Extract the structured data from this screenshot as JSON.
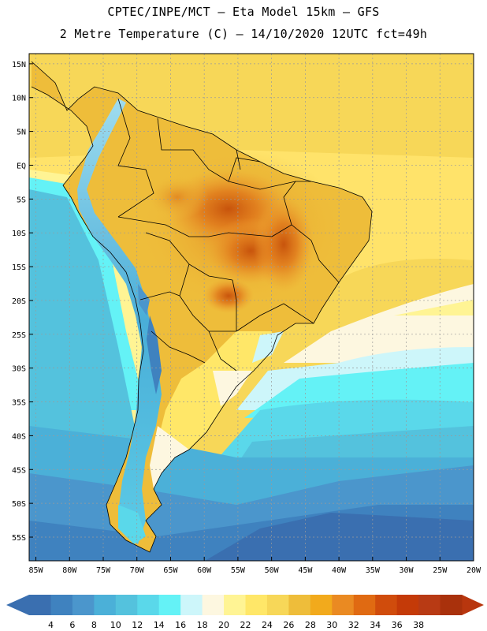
{
  "header": {
    "line1": "CPTEC/INPE/MCT –  Eta Model 15km – GFS",
    "line2": "2 Metre Temperature (C) – 14/10/2020 12UTC fct=49h"
  },
  "map": {
    "lat_labels": [
      "15N",
      "10N",
      "5N",
      "EQ",
      "5S",
      "10S",
      "15S",
      "20S",
      "25S",
      "30S",
      "35S",
      "40S",
      "45S",
      "50S",
      "55S"
    ],
    "lon_labels": [
      "85W",
      "80W",
      "75W",
      "70W",
      "65W",
      "60W",
      "55W",
      "50W",
      "45W",
      "40W",
      "35W",
      "30W",
      "25W",
      "20W"
    ],
    "extent": {
      "lon": [
        -86,
        -20
      ],
      "lat": [
        -58.5,
        16.5
      ]
    }
  },
  "colorbar": {
    "labels": [
      "4",
      "6",
      "8",
      "10",
      "12",
      "14",
      "16",
      "18",
      "20",
      "22",
      "24",
      "26",
      "28",
      "30",
      "32",
      "34",
      "36",
      "38"
    ],
    "colors": [
      "#3a6fb0",
      "#3f82bf",
      "#4b96cc",
      "#4bb0d8",
      "#54c2dd",
      "#5ad8ea",
      "#64f2f6",
      "#cdf6fa",
      "#fdf7e0",
      "#fff494",
      "#ffe768",
      "#f7d758",
      "#eebd3a",
      "#f2aa1c",
      "#ea8a22",
      "#e06a12",
      "#d04c0c",
      "#c43a08",
      "#b83a14",
      "#a9310c"
    ],
    "left_arrow_color": "#3a6fb0",
    "right_arrow_color": "#b8360e"
  }
}
